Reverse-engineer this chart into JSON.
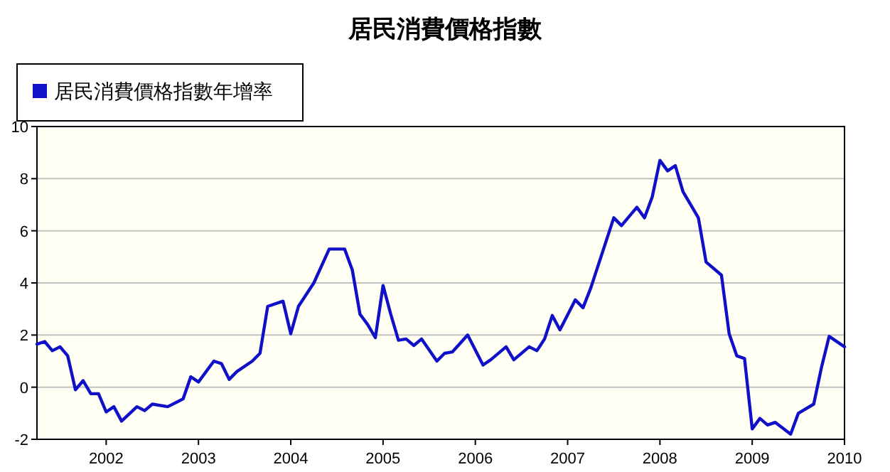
{
  "chart_data": {
    "type": "line",
    "title": "居民消費價格指數",
    "x": [
      "2001-04",
      "2001-05",
      "2001-06",
      "2001-07",
      "2001-08",
      "2001-09",
      "2001-10",
      "2001-11",
      "2001-12",
      "2002-01",
      "2002-02",
      "2002-03",
      "2002-05",
      "2002-06",
      "2002-07",
      "2002-09",
      "2002-11",
      "2002-12",
      "2003-01",
      "2003-03",
      "2003-04",
      "2003-05",
      "2003-06",
      "2003-08",
      "2003-09",
      "2003-10",
      "2003-12",
      "2004-01",
      "2004-02",
      "2004-04",
      "2004-06",
      "2004-08",
      "2004-09",
      "2004-10",
      "2004-11",
      "2004-12",
      "2005-01",
      "2005-02",
      "2005-03",
      "2005-04",
      "2005-05",
      "2005-06",
      "2005-08",
      "2005-09",
      "2005-10",
      "2005-12",
      "2006-02",
      "2006-03",
      "2006-05",
      "2006-06",
      "2006-08",
      "2006-09",
      "2006-10",
      "2006-11",
      "2006-12",
      "2007-02",
      "2007-03",
      "2007-04",
      "2007-07",
      "2007-08",
      "2007-10",
      "2007-11",
      "2007-12",
      "2008-01",
      "2008-02",
      "2008-03",
      "2008-04",
      "2008-06",
      "2008-07",
      "2008-09",
      "2008-10",
      "2008-11",
      "2008-12",
      "2009-01",
      "2009-02",
      "2009-03",
      "2009-04",
      "2009-06",
      "2009-07",
      "2009-09",
      "2009-10",
      "2009-11",
      "2010-01"
    ],
    "series": [
      {
        "name": "居民消費價格指數年增率",
        "color": "#1010c8",
        "values": [
          1.65,
          1.75,
          1.4,
          1.55,
          1.2,
          -0.1,
          0.25,
          -0.25,
          -0.25,
          -0.95,
          -0.75,
          -1.3,
          -0.75,
          -0.9,
          -0.65,
          -0.75,
          -0.45,
          0.4,
          0.2,
          1.0,
          0.9,
          0.3,
          0.6,
          1.0,
          1.3,
          3.1,
          3.3,
          2.05,
          3.1,
          4.0,
          5.3,
          5.3,
          4.5,
          2.8,
          2.4,
          1.9,
          3.9,
          2.8,
          1.8,
          1.85,
          1.6,
          1.85,
          1.0,
          1.3,
          1.35,
          2.0,
          0.85,
          1.05,
          1.55,
          1.05,
          1.55,
          1.4,
          1.85,
          2.75,
          2.2,
          3.35,
          3.05,
          3.8,
          6.5,
          6.2,
          6.9,
          6.5,
          7.3,
          8.7,
          8.3,
          8.5,
          7.5,
          6.5,
          4.8,
          4.3,
          2.05,
          1.2,
          1.1,
          -1.6,
          -1.2,
          -1.45,
          -1.35,
          -1.8,
          -1.0,
          -0.65,
          0.75,
          1.95,
          1.55
        ]
      }
    ],
    "xlim": [
      "2001-04",
      "2010-01"
    ],
    "xticks": [
      "2002",
      "2003",
      "2004",
      "2005",
      "2006",
      "2007",
      "2008",
      "2009",
      "2010"
    ],
    "ylim": [
      -2,
      10
    ],
    "yticks": [
      -2,
      0,
      2,
      4,
      6,
      8,
      10
    ],
    "grid": "y",
    "legend": "top left"
  }
}
